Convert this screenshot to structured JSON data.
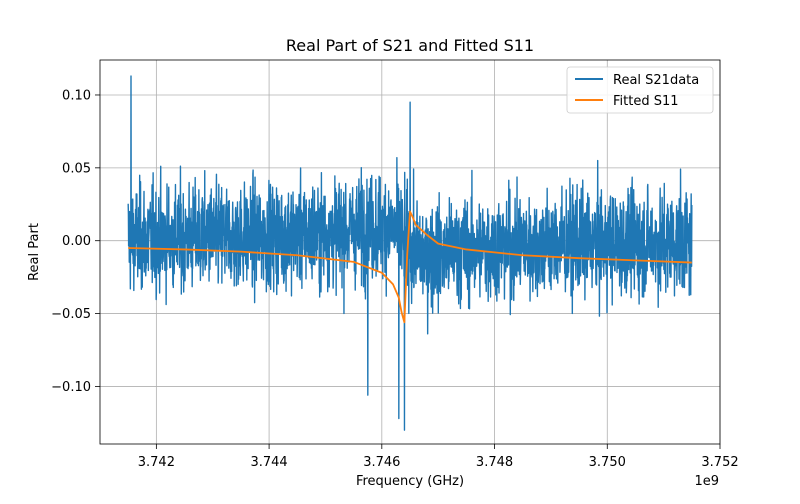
{
  "chart_data": {
    "type": "line",
    "title": "Real Part of S21 and Fitted S11",
    "xlabel": "Frequency (GHz)",
    "ylabel": "Real Part",
    "x_offset_label": "1e9",
    "xlim": [
      3.741,
      3.752
    ],
    "ylim": [
      -0.1395,
      0.124
    ],
    "x_ticks": [
      3.742,
      3.744,
      3.746,
      3.748,
      3.75,
      3.752
    ],
    "x_tick_labels": [
      "3.742",
      "3.744",
      "3.746",
      "3.748",
      "3.750",
      "3.752"
    ],
    "y_ticks": [
      -0.1,
      -0.05,
      0.0,
      0.05,
      0.1
    ],
    "y_tick_labels": [
      "−0.10",
      "−0.05",
      "0.00",
      "0.05",
      "0.10"
    ],
    "grid": true,
    "legend_position": "top-right",
    "series": [
      {
        "name": "Real S21data",
        "color": "#1f77b4",
        "x_range": [
          3.7415,
          3.7515
        ],
        "noise_band": [
          -0.06,
          0.06
        ],
        "spikes": [
          {
            "x": 3.74155,
            "y": 0.113
          },
          {
            "x": 3.7464,
            "y": -0.13
          },
          {
            "x": 3.7465,
            "y": 0.095
          },
          {
            "x": 3.7463,
            "y": -0.122
          },
          {
            "x": 3.74575,
            "y": -0.106
          }
        ]
      },
      {
        "name": "Fitted S11",
        "color": "#ff7f0e",
        "x": [
          3.7415,
          3.7425,
          3.7435,
          3.7445,
          3.7455,
          3.746,
          3.7462,
          3.7463,
          3.74635,
          3.7464,
          3.74645,
          3.7465,
          3.74655,
          3.7466,
          3.7468,
          3.747,
          3.7475,
          3.7485,
          3.7495,
          3.7505,
          3.7515
        ],
        "y": [
          -0.005,
          -0.006,
          -0.0075,
          -0.01,
          -0.0145,
          -0.022,
          -0.03,
          -0.039,
          -0.049,
          -0.056,
          -0.01,
          0.02,
          0.016,
          0.011,
          0.004,
          -0.002,
          -0.006,
          -0.01,
          -0.012,
          -0.0135,
          -0.015
        ]
      }
    ]
  }
}
